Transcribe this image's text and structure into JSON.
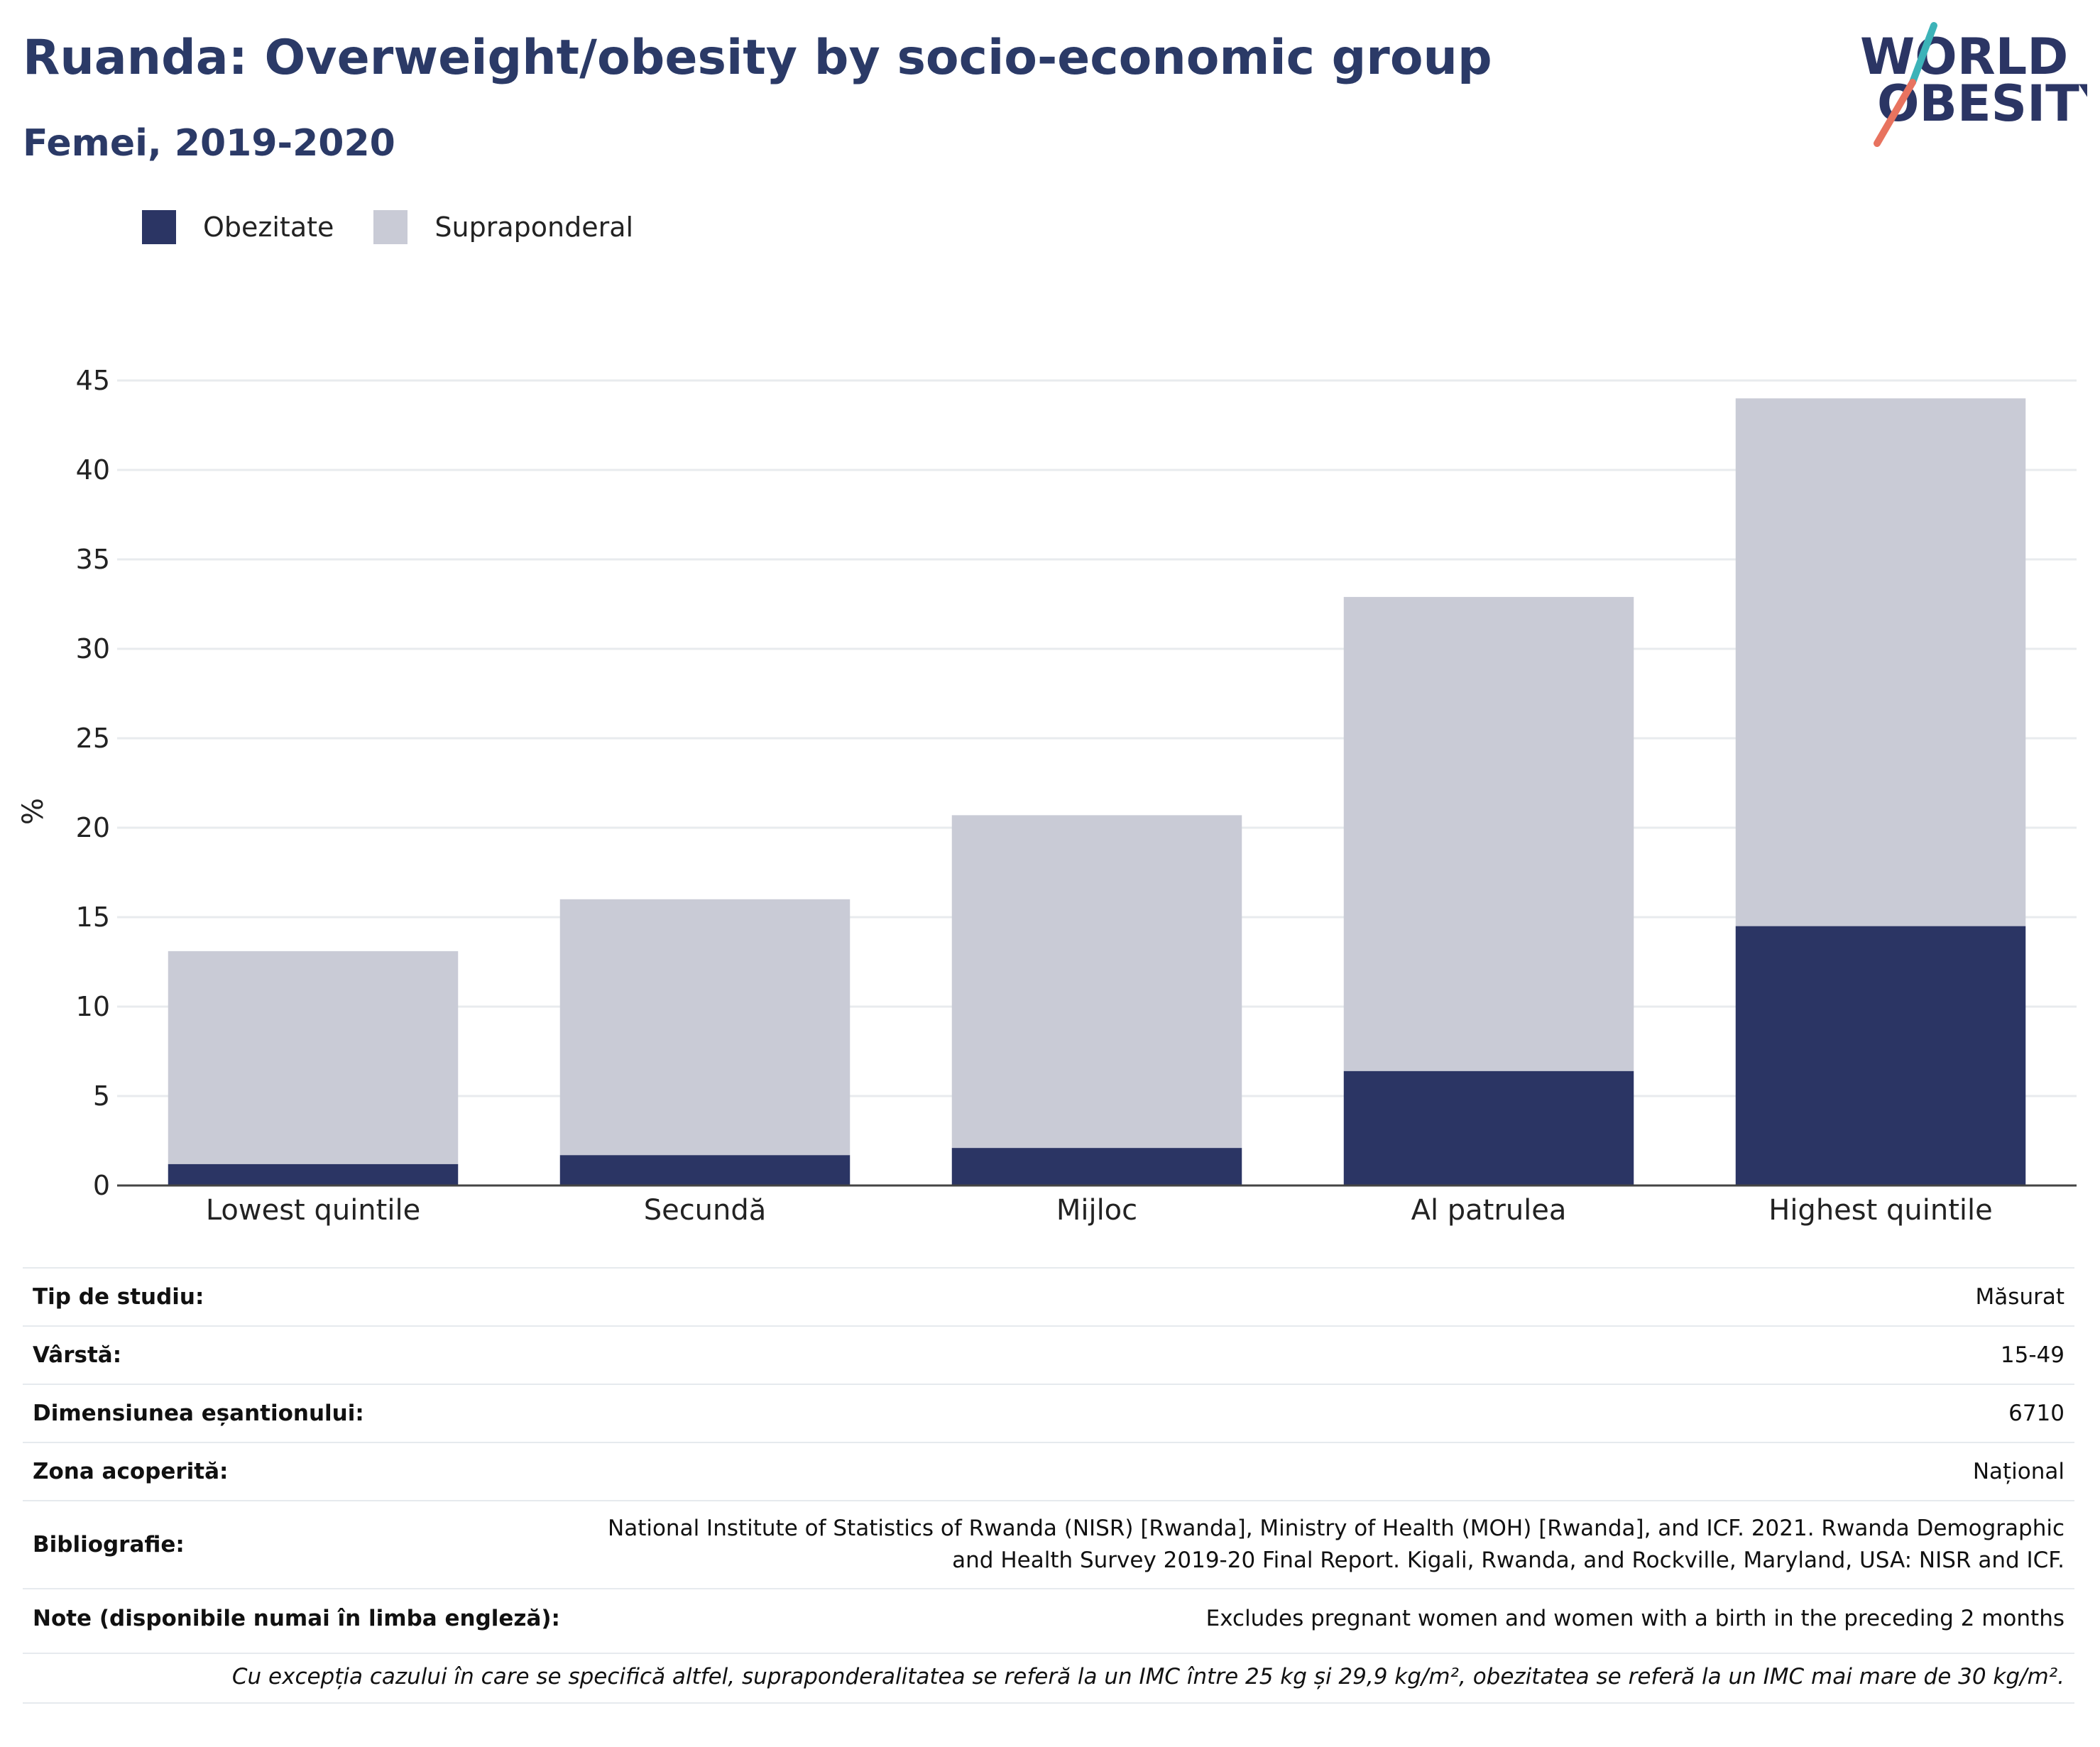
{
  "header": {
    "title": "Ruanda: Overweight/obesity by socio-economic group",
    "subtitle": "Femei, 2019-2020"
  },
  "logo": {
    "line1": "WORLD",
    "line2": "OBESITY"
  },
  "legend": [
    {
      "label": "Obezitate",
      "color": "#2b3564"
    },
    {
      "label": "Supraponderal",
      "color": "#c9cbd6"
    }
  ],
  "chart_data": {
    "type": "bar",
    "stacked": true,
    "categories": [
      "Lowest quintile",
      "Secundă",
      "Mijloc",
      "Al patrulea",
      "Highest quintile"
    ],
    "series": [
      {
        "name": "Obezitate",
        "values": [
          1.2,
          1.7,
          2.1,
          6.4,
          14.5
        ],
        "color": "#2b3564"
      },
      {
        "name": "Supraponderal",
        "values": [
          11.9,
          14.3,
          18.6,
          26.5,
          29.5
        ],
        "color": "#c9cbd6"
      }
    ],
    "ylabel": "%",
    "ylim": [
      0,
      45
    ],
    "yticks": [
      0,
      5,
      10,
      15,
      20,
      25,
      30,
      35,
      40,
      45
    ],
    "grid": true,
    "legend_position": "top-left"
  },
  "info": [
    {
      "key": "Tip de studiu:",
      "value": "Măsurat"
    },
    {
      "key": "Vârstă:",
      "value": "15-49"
    },
    {
      "key": "Dimensiunea eșantionului:",
      "value": "6710"
    },
    {
      "key": "Zona acoperită:",
      "value": "Național"
    },
    {
      "key": "Bibliografie:",
      "value": "National Institute of Statistics of Rwanda (NISR) [Rwanda], Ministry of Health (MOH) [Rwanda], and ICF. 2021. Rwanda Demographic and Health Survey 2019-20 Final Report. Kigali, Rwanda, and Rockville, Maryland, USA: NISR and ICF."
    },
    {
      "key": "Note (disponibile numai în limba engleză):",
      "value": "Excludes pregnant women and women with a birth in the preceding 2 months"
    }
  ],
  "footnote": "Cu excepția cazului în care se specifică altfel, supraponderalitatea se referă la un IMC între 25 kg și 29,9 kg/m², obezitatea se referă la un IMC mai mare de 30 kg/m²."
}
